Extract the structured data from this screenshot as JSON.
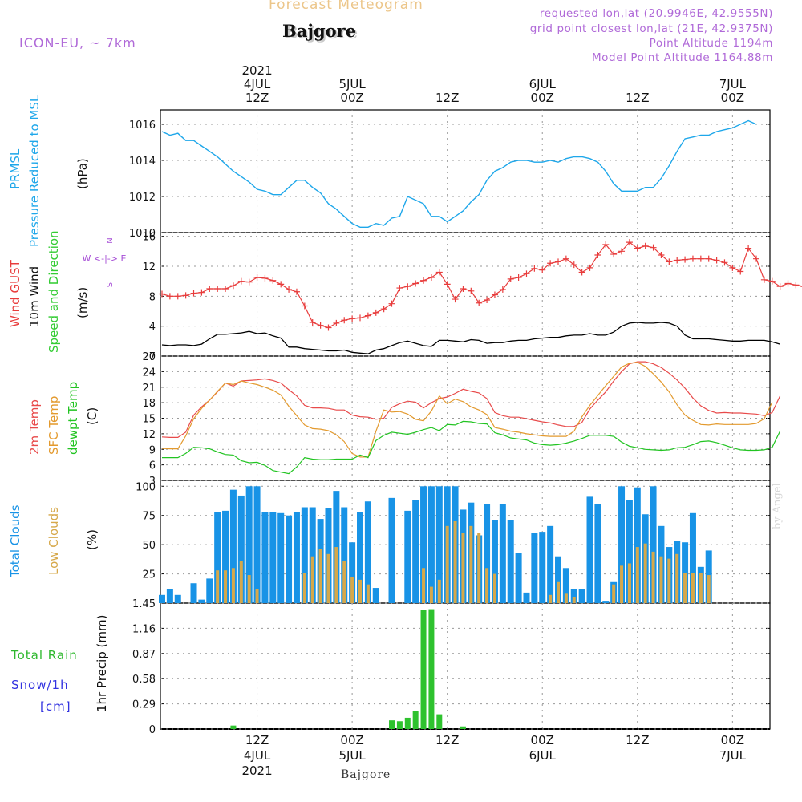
{
  "header": {
    "title": "Forecast Meteogram",
    "location": "Bajgore",
    "model": "ICON-EU, ~ 7km",
    "requested": "requested lon,lat (20.9946E, 42.9555N)",
    "grid_point": "grid point closest lon,lat (21E, 42.9375N)",
    "point_altitude": "Point Altitude 1194m",
    "model_altitude": "Model Point Altitude 1164.88m"
  },
  "footer": {
    "location": "Bajgore"
  },
  "watermark": "by Angel",
  "colors": {
    "pressure": "#1ea7ea",
    "gust": "#e83c3c",
    "wind": "#000000",
    "dir": "#33cc33",
    "temp2m": "#e84a4a",
    "sfc": "#e39a2e",
    "dew": "#22c422",
    "totalcloud": "#1893e6",
    "lowcloud": "#d6a84a",
    "rain": "#2ec22e",
    "dirlabel": "#a64dd6",
    "grid": "#9a9a9a"
  },
  "time_axis": {
    "top_labels": [
      {
        "line1": "2021",
        "line2": "4JUL",
        "line3": "12Z",
        "idx": 12
      },
      {
        "line1": "",
        "line2": "5JUL",
        "line3": "00Z",
        "idx": 24
      },
      {
        "line1": "",
        "line2": "",
        "line3": "12Z",
        "idx": 36
      },
      {
        "line1": "",
        "line2": "6JUL",
        "line3": "00Z",
        "idx": 48
      },
      {
        "line1": "",
        "line2": "",
        "line3": "12Z",
        "idx": 60
      },
      {
        "line1": "",
        "line2": "7JUL",
        "line3": "00Z",
        "idx": 72
      }
    ],
    "bottom_labels": [
      {
        "line1": "12Z",
        "line2": "4JUL",
        "line3": "2021",
        "idx": 12
      },
      {
        "line1": "00Z",
        "line2": "5JUL",
        "line3": "",
        "idx": 24
      },
      {
        "line1": "12Z",
        "line2": "",
        "line3": "",
        "idx": 36
      },
      {
        "line1": "00Z",
        "line2": "6JUL",
        "line3": "",
        "idx": 48
      },
      {
        "line1": "12Z",
        "line2": "",
        "line3": "",
        "idx": 60
      },
      {
        "line1": "00Z",
        "line2": "7JUL",
        "line3": "",
        "idx": 72
      }
    ],
    "hours": 78
  },
  "panel_labels": {
    "pressure": {
      "a": "PRMSL",
      "b": "Pressure Reduced to MSL",
      "unit": "(hPa)"
    },
    "wind": {
      "a": "Wind GUST",
      "b": "10m Wind",
      "c": "Speed and Direction",
      "unit": "(m/s)",
      "dir": [
        "N",
        "W <-|-> E",
        "S"
      ]
    },
    "temp": {
      "a": "2m Temp",
      "b": "SFC Temp",
      "c": "dewpt Temp",
      "unit": "(C)"
    },
    "cloud": {
      "a": "Total Clouds",
      "b": "Low Clouds",
      "unit": "(%)"
    },
    "precip": {
      "unit": "1hr Precip (mm)",
      "total": "Total  Rain",
      "snow": "Snow/1h",
      "cm": "[cm]"
    }
  },
  "chart_data": [
    {
      "type": "line",
      "name": "PRMSL",
      "ylim": [
        1010,
        1016.8
      ],
      "yticks": [
        "1010",
        "1012",
        "1014",
        "1016"
      ],
      "values": [
        1015.6,
        1015.4,
        1015.5,
        1015.1,
        1015.1,
        1014.8,
        1014.5,
        1014.2,
        1013.8,
        1013.4,
        1013.1,
        1012.8,
        1012.4,
        1012.3,
        1012.1,
        1012.1,
        1012.5,
        1012.9,
        1012.9,
        1012.5,
        1012.2,
        1011.6,
        1011.3,
        1010.9,
        1010.5,
        1010.3,
        1010.3,
        1010.5,
        1010.4,
        1010.8,
        1010.9,
        1012.0,
        1011.8,
        1011.6,
        1010.9,
        1010.9,
        1010.6,
        1010.9,
        1011.2,
        1011.7,
        1012.1,
        1012.9,
        1013.4,
        1013.6,
        1013.9,
        1014.0,
        1014.0,
        1013.9,
        1013.9,
        1014.0,
        1013.9,
        1014.1,
        1014.2,
        1014.2,
        1014.1,
        1013.9,
        1013.4,
        1012.7,
        1012.3,
        1012.3,
        1012.3,
        1012.5,
        1012.5,
        1013.0,
        1013.7,
        1014.5,
        1015.2,
        1015.3,
        1015.4,
        1015.4,
        1015.6,
        1015.7,
        1015.8,
        1016.0,
        1016.2,
        1016.0
      ]
    },
    {
      "type": "line",
      "name": "Wind GUST / 10m Wind",
      "ylim": [
        0,
        16.5
      ],
      "yticks": [
        "0",
        "4",
        "8",
        "12",
        "16"
      ],
      "series": [
        {
          "name": "Wind GUST",
          "values": [
            8.3,
            8.0,
            8.0,
            8.1,
            8.4,
            8.5,
            9.0,
            9.0,
            9.0,
            9.4,
            10.0,
            9.9,
            10.5,
            10.4,
            10.1,
            9.6,
            8.9,
            8.6,
            6.7,
            4.5,
            4.1,
            3.8,
            4.4,
            4.8,
            5.0,
            5.1,
            5.4,
            5.8,
            6.3,
            7.0,
            9.1,
            9.3,
            9.7,
            10.1,
            10.5,
            11.2,
            9.6,
            7.6,
            9.0,
            8.7,
            7.1,
            7.5,
            8.2,
            8.9,
            10.3,
            10.5,
            11.0,
            11.7,
            11.5,
            12.4,
            12.6,
            13.0,
            12.2,
            11.2,
            11.8,
            13.5,
            14.9,
            13.6,
            14.0,
            15.2,
            14.4,
            14.7,
            14.5,
            13.5,
            12.6,
            12.8,
            12.9,
            13.0,
            13.0,
            13.0,
            12.8,
            12.5,
            11.8,
            11.3,
            14.4,
            13.0,
            10.2,
            10.0,
            9.3,
            9.7,
            9.5,
            9.3,
            9.4,
            10.0,
            9.8
          ]
        },
        {
          "name": "10m Wind",
          "values": [
            1.5,
            1.4,
            1.5,
            1.5,
            1.4,
            1.6,
            2.3,
            2.9,
            2.9,
            3.0,
            3.1,
            3.3,
            3.0,
            3.1,
            2.7,
            2.4,
            1.2,
            1.2,
            1.0,
            0.9,
            0.8,
            0.7,
            0.7,
            0.8,
            0.5,
            0.4,
            0.3,
            0.8,
            1.0,
            1.4,
            1.8,
            2.0,
            1.7,
            1.4,
            1.3,
            2.1,
            2.1,
            2.0,
            1.9,
            2.2,
            2.1,
            1.7,
            1.8,
            1.8,
            2.0,
            2.1,
            2.1,
            2.3,
            2.4,
            2.5,
            2.5,
            2.7,
            2.8,
            2.8,
            3.0,
            2.8,
            2.8,
            3.2,
            4.0,
            4.4,
            4.5,
            4.4,
            4.4,
            4.5,
            4.4,
            4.0,
            2.8,
            2.3,
            2.3,
            2.3,
            2.2,
            2.1,
            2.0,
            2.0,
            2.1,
            2.1,
            2.1,
            1.9,
            1.6
          ]
        }
      ]
    },
    {
      "type": "line",
      "name": "Temperatures",
      "ylim": [
        3,
        27
      ],
      "yticks": [
        "3",
        "6",
        "9",
        "12",
        "15",
        "18",
        "21",
        "24",
        "27"
      ],
      "series": [
        {
          "name": "2m Temp",
          "values": [
            11.4,
            11.3,
            11.3,
            12.3,
            15.6,
            17.2,
            18.5,
            20.1,
            21.8,
            21.2,
            22.2,
            22.3,
            22.4,
            22.6,
            22.3,
            21.8,
            20.5,
            19.3,
            17.5,
            17.0,
            17.0,
            16.9,
            16.6,
            16.6,
            15.6,
            15.3,
            15.2,
            14.8,
            15.0,
            17.1,
            17.8,
            18.3,
            18.1,
            17.0,
            18.0,
            18.8,
            19.1,
            19.8,
            20.6,
            20.2,
            19.9,
            18.8,
            16.1,
            15.5,
            15.2,
            15.2,
            14.9,
            14.6,
            14.3,
            14.1,
            13.7,
            13.4,
            13.4,
            14.2,
            16.8,
            18.5,
            20.1,
            22.2,
            24.0,
            25.5,
            25.9,
            25.9,
            25.5,
            24.8,
            23.7,
            22.4,
            20.8,
            18.9,
            17.4,
            16.5,
            16.0,
            16.1,
            16.0,
            16.0,
            15.9,
            15.8,
            15.5,
            16.1,
            19.3
          ]
        },
        {
          "name": "SFC Temp",
          "values": [
            9.2,
            9.1,
            9.1,
            11.6,
            14.9,
            16.9,
            18.5,
            20.2,
            21.8,
            21.5,
            22.2,
            21.8,
            21.5,
            21.0,
            20.4,
            19.5,
            17.3,
            15.5,
            13.7,
            13.0,
            12.9,
            12.6,
            11.8,
            10.5,
            8.2,
            7.5,
            7.5,
            12.5,
            16.6,
            16.2,
            16.3,
            15.8,
            14.8,
            14.5,
            16.4,
            19.3,
            17.8,
            18.7,
            18.2,
            17.2,
            16.6,
            15.7,
            13.2,
            12.9,
            12.5,
            12.3,
            12.0,
            11.8,
            11.6,
            11.5,
            11.5,
            11.5,
            12.5,
            15.3,
            17.5,
            19.4,
            21.3,
            23.1,
            24.9,
            25.6,
            25.8,
            25.0,
            23.6,
            22.0,
            20.1,
            17.6,
            15.6,
            14.6,
            13.8,
            13.7,
            13.9,
            13.8,
            13.8,
            13.8,
            13.8,
            14.0,
            14.9,
            18.1
          ]
        },
        {
          "name": "dewpt Temp",
          "values": [
            7.4,
            7.4,
            7.4,
            8.2,
            9.4,
            9.3,
            9.1,
            8.5,
            8.0,
            7.9,
            6.8,
            6.4,
            6.5,
            5.9,
            4.9,
            4.6,
            4.3,
            5.6,
            7.4,
            7.1,
            7.0,
            7.0,
            7.1,
            7.1,
            7.1,
            7.9,
            7.4,
            10.7,
            11.7,
            12.3,
            12.1,
            11.9,
            12.3,
            12.8,
            13.2,
            12.6,
            13.8,
            13.7,
            14.4,
            14.3,
            14.0,
            13.9,
            12.2,
            11.8,
            11.2,
            11.0,
            10.8,
            10.2,
            9.9,
            9.8,
            9.9,
            10.2,
            10.6,
            11.1,
            11.7,
            11.7,
            11.7,
            11.5,
            10.4,
            9.6,
            9.3,
            9.0,
            8.9,
            8.8,
            8.9,
            9.3,
            9.4,
            9.9,
            10.5,
            10.6,
            10.3,
            9.8,
            9.3,
            8.9,
            8.8,
            8.8,
            8.9,
            9.4,
            12.5
          ]
        }
      ]
    },
    {
      "type": "bar",
      "name": "Clouds",
      "ylim": [
        0,
        105
      ],
      "yticks": [
        "25",
        "50",
        "75",
        "100"
      ],
      "series": [
        {
          "name": "Total Clouds",
          "values": [
            7,
            12,
            7,
            0,
            17,
            3,
            21,
            78,
            79,
            97,
            92,
            100,
            100,
            78,
            78,
            77,
            75,
            78,
            82,
            82,
            72,
            81,
            96,
            82,
            52,
            78,
            87,
            13,
            0,
            90,
            0,
            79,
            88,
            100,
            100,
            100,
            100,
            100,
            80,
            86,
            58,
            85,
            71,
            85,
            71,
            43,
            9,
            60,
            61,
            66,
            40,
            30,
            12,
            12,
            91,
            85,
            2,
            18,
            100,
            88,
            99,
            76,
            100,
            66,
            48,
            53,
            52,
            77,
            31,
            45,
            0,
            0,
            0,
            0,
            0,
            0,
            0,
            0
          ]
        },
        {
          "name": "Low Clouds",
          "values": [
            0,
            0,
            0,
            0,
            0,
            0,
            0,
            28,
            28,
            30,
            36,
            24,
            12,
            0,
            0,
            0,
            0,
            0,
            26,
            40,
            46,
            42,
            48,
            36,
            22,
            20,
            16,
            0,
            0,
            0,
            0,
            0,
            0,
            30,
            14,
            20,
            66,
            70,
            60,
            66,
            60,
            30,
            25,
            0,
            0,
            0,
            0,
            0,
            0,
            7,
            18,
            8,
            5,
            0,
            0,
            0,
            0,
            16,
            32,
            34,
            48,
            51,
            44,
            40,
            38,
            42,
            26,
            26,
            26,
            24,
            0,
            0,
            0,
            0,
            0,
            0,
            0,
            0
          ]
        }
      ]
    },
    {
      "type": "bar",
      "name": "1hr Precip",
      "ylim": [
        0,
        1.45
      ],
      "yticks": [
        "0",
        "0.29",
        "0.58",
        "0.87",
        "1.16",
        "1.45"
      ],
      "values": [
        0,
        0,
        0,
        0,
        0,
        0,
        0,
        0,
        0,
        0.04,
        0,
        0,
        0,
        0,
        0,
        0,
        0,
        0,
        0,
        0,
        0,
        0,
        0,
        0,
        0,
        0,
        0,
        0,
        0,
        0.1,
        0.09,
        0.13,
        0.21,
        1.37,
        1.38,
        0.17,
        0,
        0,
        0.03,
        0,
        0,
        0,
        0,
        0,
        0,
        0,
        0,
        0,
        0,
        0,
        0,
        0,
        0,
        0,
        0,
        0,
        0,
        0,
        0,
        0,
        0,
        0,
        0,
        0,
        0,
        0,
        0,
        0,
        0,
        0,
        0,
        0,
        0,
        0,
        0,
        0,
        0,
        0
      ]
    }
  ]
}
